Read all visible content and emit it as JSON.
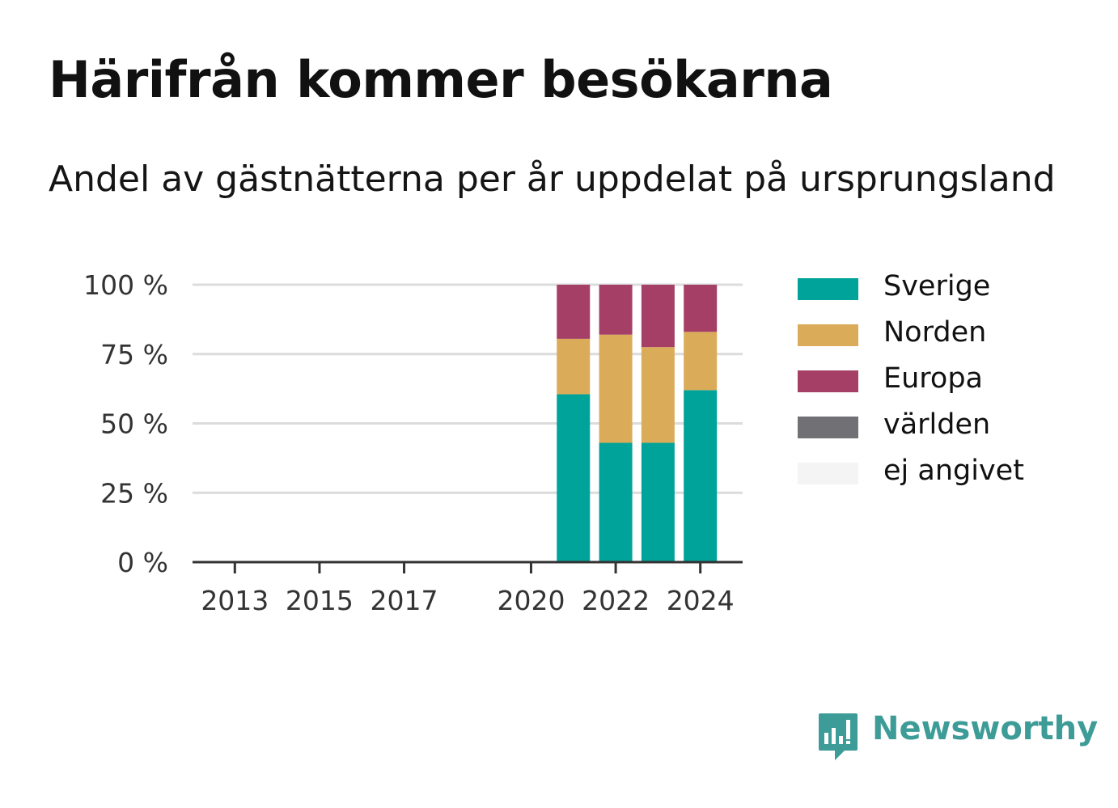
{
  "title": "Härifrån kommer besökarna",
  "subtitle": "Andel av gästnätterna per år uppdelat på ursprungsland",
  "brand": {
    "name": "Newsworthy",
    "color": "#3d9c97",
    "icon": "newsworthy-logo-icon"
  },
  "chart_data": {
    "type": "bar",
    "stacked": true,
    "grid": true,
    "legend_position": "right",
    "x_ticks": [
      "2013",
      "2015",
      "2017",
      "2020",
      "2022",
      "2024"
    ],
    "y_ticks": [
      "0 %",
      "25 %",
      "50 %",
      "75 %",
      "100 %"
    ],
    "ylim": [
      0,
      100
    ],
    "xlim": [
      2012,
      2025
    ],
    "categories": [
      2021,
      2022,
      2023,
      2024
    ],
    "series": [
      {
        "name": "Sverige",
        "color": "#00a39a",
        "values": [
          60.5,
          43,
          43,
          62
        ]
      },
      {
        "name": "Norden",
        "color": "#daac59",
        "values": [
          20,
          39,
          34.5,
          21
        ]
      },
      {
        "name": "Europa",
        "color": "#a53f66",
        "values": [
          19.5,
          18,
          22.5,
          17
        ]
      },
      {
        "name": "världen",
        "color": "#717075",
        "values": [
          0,
          0,
          0,
          0
        ]
      },
      {
        "name": "ej angivet",
        "color": "#f4f4f4",
        "values": [
          0,
          0,
          0,
          0
        ]
      }
    ]
  }
}
